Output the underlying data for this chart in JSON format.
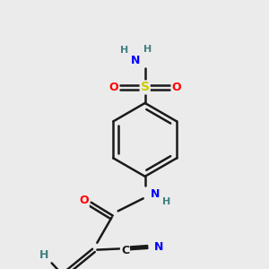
{
  "bg_color": "#ebebeb",
  "bond_color": "#1a1a1a",
  "bond_width": 1.8,
  "atom_colors": {
    "N": "#0000ff",
    "O": "#ff0000",
    "S": "#cccc00",
    "C": "#1a1a1a",
    "H": "#408080"
  },
  "font_size": 9,
  "font_size_small": 8
}
